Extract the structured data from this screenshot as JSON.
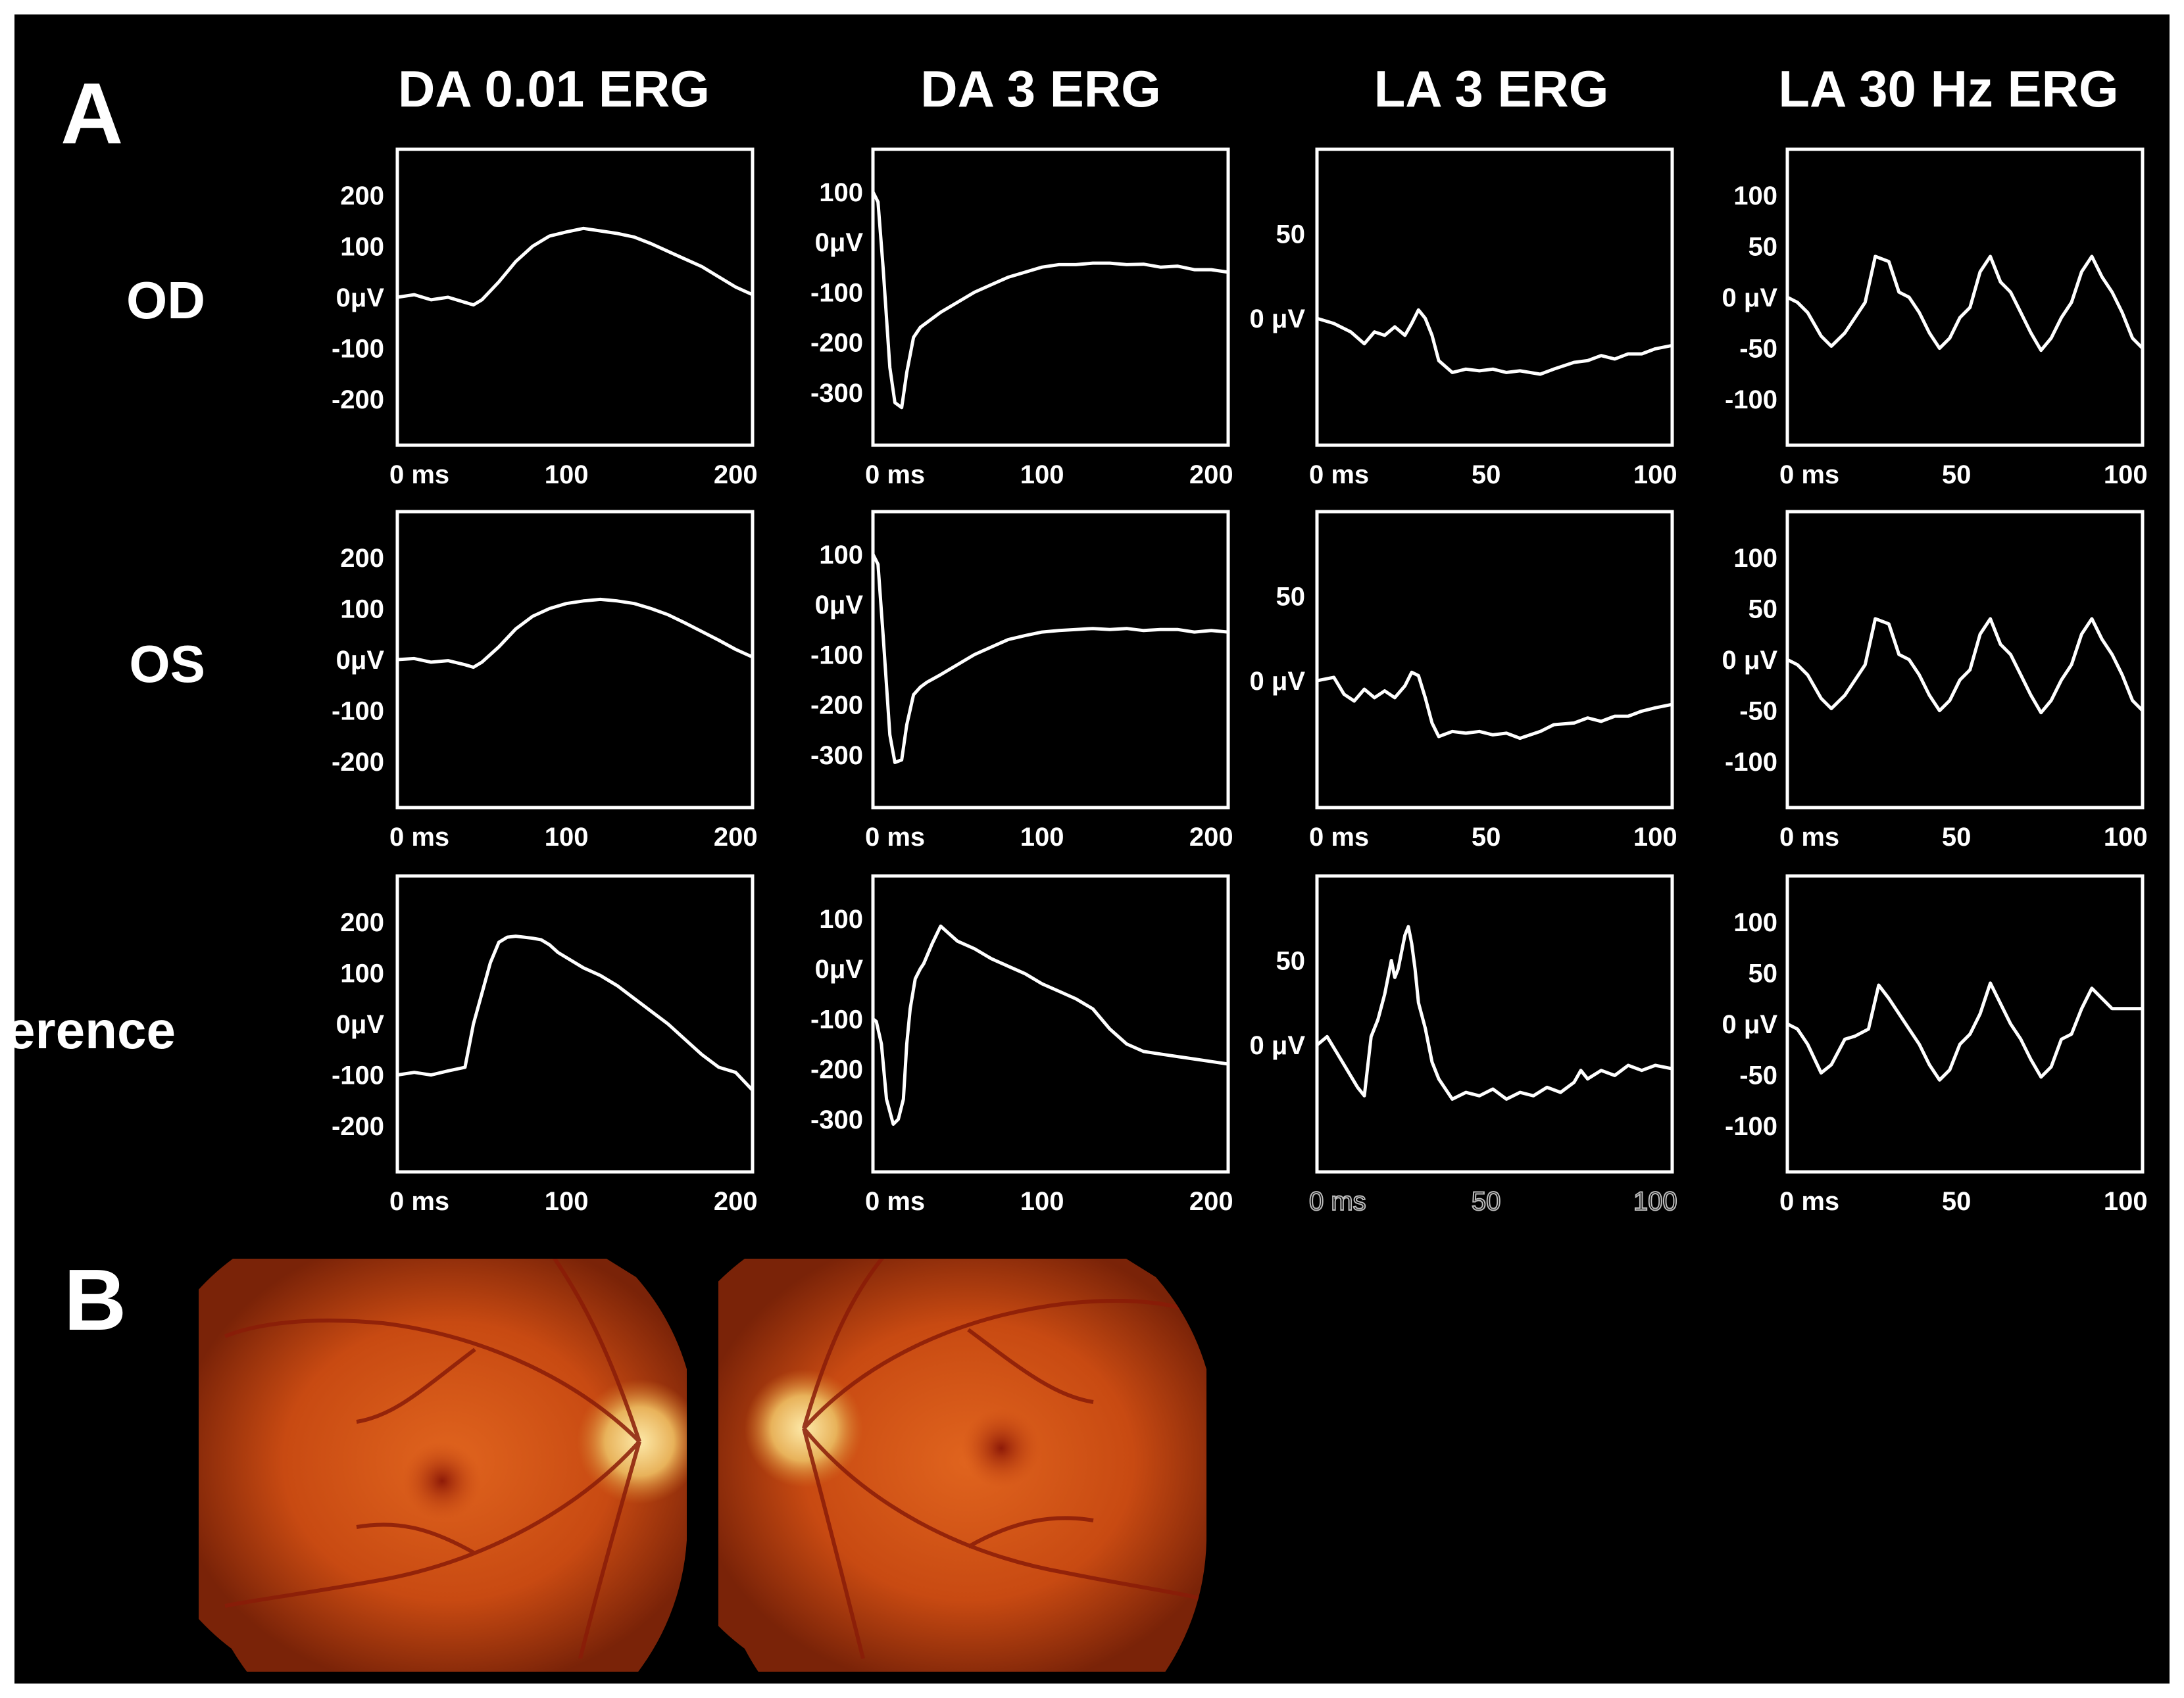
{
  "panels": {
    "a_label": "A",
    "b_label": "B"
  },
  "colors": {
    "background": "#000000",
    "trace": "#ffffff",
    "fundus_red": "#c84a12"
  },
  "chart_data": {
    "type": "line",
    "columns": [
      {
        "title": "DA 0.01 ERG",
        "x_ticks": [
          "0 ms",
          "100",
          "200"
        ],
        "x_tick_values": [
          0,
          100,
          200
        ],
        "xlim": [
          0,
          210
        ],
        "y_ticks": [
          "200",
          "100",
          "0μV",
          "-100",
          "-200"
        ],
        "y_tick_values": [
          200,
          100,
          0,
          -100,
          -200
        ],
        "ylim": [
          -290,
          290
        ]
      },
      {
        "title": "DA 3 ERG",
        "x_ticks": [
          "0 ms",
          "100",
          "200"
        ],
        "x_tick_values": [
          0,
          100,
          200
        ],
        "xlim": [
          0,
          210
        ],
        "y_ticks": [
          "100",
          "0μV",
          "-100",
          "-200",
          "-300"
        ],
        "y_tick_values": [
          100,
          0,
          -100,
          -200,
          -300
        ],
        "ylim": [
          -405,
          185
        ]
      },
      {
        "title": "LA 3 ERG",
        "x_ticks": [
          "0 ms",
          "50",
          "100"
        ],
        "x_tick_values": [
          0,
          50,
          100
        ],
        "xlim": [
          0,
          105
        ],
        "y_ticks": [
          "50",
          "0 μV"
        ],
        "y_tick_values": [
          50,
          0
        ],
        "ylim": [
          -75,
          100
        ]
      },
      {
        "title": "LA 30 Hz ERG",
        "x_ticks": [
          "0 ms",
          "50",
          "100"
        ],
        "x_tick_values": [
          0,
          50,
          100
        ],
        "xlim": [
          0,
          105
        ],
        "y_ticks": [
          "100",
          "50",
          "0 μV",
          "-50",
          "-100"
        ],
        "y_tick_values": [
          100,
          50,
          0,
          -50,
          -100
        ],
        "ylim": [
          -145,
          145
        ]
      }
    ],
    "rows": [
      {
        "label": "OD",
        "series": [
          {
            "x": [
              0,
              10,
              20,
              30,
              40,
              45,
              50,
              60,
              70,
              80,
              90,
              100,
              110,
              120,
              130,
              140,
              150,
              160,
              170,
              180,
              190,
              200,
              210
            ],
            "y": [
              0,
              5,
              -5,
              0,
              -10,
              -15,
              -5,
              30,
              70,
              100,
              120,
              128,
              135,
              130,
              125,
              118,
              105,
              90,
              75,
              60,
              40,
              20,
              5
            ]
          },
          {
            "x": [
              0,
              3,
              6,
              10,
              13,
              17,
              20,
              24,
              28,
              32,
              40,
              50,
              60,
              70,
              80,
              90,
              100,
              110,
              120,
              130,
              140,
              150,
              160,
              170,
              180,
              190,
              200,
              210
            ],
            "y": [
              100,
              80,
              -50,
              -250,
              -320,
              -330,
              -260,
              -190,
              -170,
              -160,
              -140,
              -120,
              -100,
              -85,
              -70,
              -60,
              -50,
              -45,
              -45,
              -42,
              -42,
              -45,
              -44,
              -50,
              -48,
              -55,
              -55,
              -60
            ]
          },
          {
            "x": [
              0,
              5,
              10,
              14,
              17,
              20,
              23,
              26,
              28,
              30,
              32,
              34,
              36,
              40,
              44,
              48,
              52,
              56,
              60,
              66,
              70,
              76,
              80,
              84,
              88,
              92,
              96,
              100,
              105
            ],
            "y": [
              0,
              -3,
              -8,
              -15,
              -8,
              -10,
              -5,
              -10,
              -3,
              5,
              0,
              -10,
              -25,
              -32,
              -30,
              -31,
              -30,
              -32,
              -31,
              -33,
              -30,
              -26,
              -25,
              -22,
              -24,
              -21,
              -21,
              -18,
              -16
            ]
          },
          {
            "x": [
              0,
              3,
              6,
              10,
              13,
              17,
              20,
              23,
              26,
              30,
              33,
              36,
              39,
              42,
              45,
              48,
              51,
              54,
              57,
              60,
              63,
              66,
              69,
              72,
              75,
              78,
              81,
              84,
              87,
              90,
              93,
              96,
              99,
              102,
              105
            ],
            "y": [
              0,
              -5,
              -15,
              -38,
              -48,
              -35,
              -20,
              -5,
              40,
              35,
              5,
              0,
              -15,
              -35,
              -50,
              -40,
              -20,
              -10,
              25,
              40,
              15,
              5,
              -15,
              -35,
              -52,
              -40,
              -20,
              -5,
              25,
              40,
              20,
              5,
              -15,
              -40,
              -50
            ]
          }
        ]
      },
      {
        "label": "OS",
        "series": [
          {
            "x": [
              0,
              10,
              20,
              30,
              40,
              45,
              50,
              60,
              70,
              80,
              90,
              100,
              110,
              120,
              130,
              140,
              150,
              160,
              170,
              180,
              190,
              200,
              210
            ],
            "y": [
              0,
              2,
              -5,
              -2,
              -10,
              -15,
              -5,
              25,
              60,
              85,
              100,
              110,
              115,
              118,
              115,
              110,
              100,
              88,
              72,
              55,
              38,
              20,
              5
            ]
          },
          {
            "x": [
              0,
              3,
              6,
              10,
              13,
              17,
              20,
              24,
              28,
              32,
              40,
              50,
              60,
              70,
              80,
              90,
              100,
              110,
              120,
              130,
              140,
              150,
              160,
              170,
              180,
              190,
              200,
              210
            ],
            "y": [
              100,
              80,
              -60,
              -260,
              -315,
              -310,
              -240,
              -180,
              -165,
              -155,
              -140,
              -120,
              -100,
              -85,
              -70,
              -62,
              -55,
              -52,
              -50,
              -48,
              -50,
              -48,
              -52,
              -50,
              -50,
              -55,
              -52,
              -55
            ]
          },
          {
            "x": [
              0,
              5,
              8,
              11,
              14,
              17,
              20,
              23,
              26,
              28,
              30,
              32,
              34,
              36,
              40,
              44,
              48,
              52,
              56,
              60,
              66,
              70,
              76,
              80,
              84,
              88,
              92,
              96,
              100,
              105
            ],
            "y": [
              0,
              2,
              -8,
              -12,
              -5,
              -10,
              -6,
              -10,
              -3,
              5,
              3,
              -10,
              -25,
              -33,
              -30,
              -31,
              -30,
              -32,
              -31,
              -34,
              -30,
              -26,
              -25,
              -22,
              -24,
              -21,
              -21,
              -18,
              -16,
              -14
            ]
          },
          {
            "x": [
              0,
              3,
              6,
              10,
              13,
              17,
              20,
              23,
              26,
              30,
              33,
              36,
              39,
              42,
              45,
              48,
              51,
              54,
              57,
              60,
              63,
              66,
              69,
              72,
              75,
              78,
              81,
              84,
              87,
              90,
              93,
              96,
              99,
              102,
              105
            ],
            "y": [
              0,
              -5,
              -15,
              -38,
              -48,
              -35,
              -20,
              -5,
              40,
              35,
              5,
              0,
              -15,
              -35,
              -50,
              -40,
              -20,
              -10,
              25,
              40,
              15,
              5,
              -15,
              -35,
              -52,
              -40,
              -20,
              -5,
              25,
              40,
              20,
              5,
              -15,
              -40,
              -50
            ]
          }
        ]
      },
      {
        "label": "Reference",
        "series": [
          {
            "x": [
              0,
              10,
              20,
              30,
              40,
              45,
              50,
              55,
              60,
              65,
              70,
              75,
              80,
              85,
              90,
              95,
              100,
              110,
              120,
              130,
              140,
              150,
              160,
              170,
              180,
              190,
              200,
              210
            ],
            "y": [
              -100,
              -95,
              -100,
              -92,
              -85,
              0,
              60,
              120,
              160,
              170,
              172,
              170,
              168,
              165,
              155,
              140,
              130,
              110,
              95,
              75,
              50,
              25,
              0,
              -30,
              -60,
              -85,
              -95,
              -130
            ]
          },
          {
            "x": [
              0,
              2,
              5,
              8,
              12,
              15,
              18,
              20,
              22,
              25,
              28,
              30,
              35,
              40,
              45,
              50,
              60,
              70,
              80,
              90,
              100,
              110,
              120,
              130,
              140,
              150,
              160,
              170,
              180,
              190,
              200,
              210
            ],
            "y": [
              -100,
              -105,
              -150,
              -260,
              -310,
              -300,
              -260,
              -150,
              -80,
              -20,
              0,
              10,
              50,
              85,
              70,
              55,
              40,
              20,
              5,
              -10,
              -30,
              -45,
              -60,
              -80,
              -120,
              -150,
              -165,
              -170,
              -175,
              -180,
              -185,
              -190
            ]
          },
          {
            "x": [
              0,
              3,
              6,
              9,
              12,
              14,
              16,
              18,
              20,
              22,
              23,
              24,
              26,
              27,
              28,
              29,
              30,
              32,
              34,
              36,
              40,
              44,
              48,
              52,
              56,
              60,
              64,
              68,
              72,
              76,
              78,
              80,
              84,
              88,
              92,
              96,
              100,
              105
            ],
            "y": [
              0,
              5,
              -5,
              -15,
              -25,
              -30,
              5,
              15,
              30,
              50,
              40,
              45,
              65,
              70,
              60,
              45,
              25,
              10,
              -10,
              -20,
              -32,
              -28,
              -30,
              -26,
              -32,
              -28,
              -30,
              -25,
              -28,
              -22,
              -15,
              -20,
              -15,
              -18,
              -12,
              -15,
              -12,
              -14
            ]
          },
          {
            "x": [
              0,
              3,
              6,
              10,
              13,
              17,
              20,
              24,
              27,
              30,
              33,
              36,
              39,
              42,
              45,
              48,
              51,
              54,
              57,
              60,
              63,
              66,
              69,
              72,
              75,
              78,
              81,
              84,
              87,
              90,
              93,
              96,
              99,
              102,
              105
            ],
            "y": [
              0,
              -5,
              -20,
              -48,
              -40,
              -15,
              -12,
              -5,
              38,
              25,
              10,
              -5,
              -20,
              -40,
              -55,
              -45,
              -20,
              -10,
              10,
              40,
              20,
              0,
              -15,
              -35,
              -52,
              -42,
              -15,
              -10,
              15,
              35,
              25,
              15,
              15,
              15,
              15
            ]
          }
        ]
      }
    ]
  }
}
